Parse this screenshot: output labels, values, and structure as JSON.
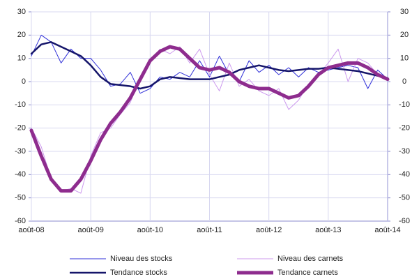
{
  "chart_data": {
    "type": "line",
    "categories": [
      "août-08",
      null,
      null,
      null,
      null,
      null,
      "août-09",
      null,
      null,
      null,
      null,
      null,
      "août-10",
      null,
      null,
      null,
      null,
      null,
      "août-11",
      null,
      null,
      null,
      null,
      null,
      "août-12",
      null,
      null,
      null,
      null,
      null,
      "août-13",
      null,
      null,
      null,
      null,
      null,
      "août-14"
    ],
    "series": [
      {
        "name": "Niveau des stocks",
        "color": "#2f2fd8",
        "width": 1,
        "values": [
          11,
          20,
          17,
          8,
          14,
          10,
          10,
          5,
          -2,
          -1,
          4,
          -5,
          -3,
          2,
          1,
          4,
          2,
          9,
          2,
          11,
          3,
          0,
          9,
          4,
          7,
          3,
          6,
          2,
          6,
          4,
          5,
          6,
          7,
          6,
          -3,
          5,
          1
        ]
      },
      {
        "name": "Niveau des carnets",
        "color": "#cc99ee",
        "width": 1,
        "values": [
          -20,
          -28,
          -42,
          -47,
          -46,
          -48,
          -32,
          -22,
          -20,
          -14,
          -9,
          2,
          8,
          14,
          12,
          15,
          8,
          14,
          3,
          -4,
          8,
          -2,
          1,
          -4,
          -6,
          -3,
          -12,
          -8,
          -1,
          3,
          8,
          14,
          0,
          10,
          8,
          3,
          1
        ]
      },
      {
        "name": "Tendance stocks",
        "color": "#15156a",
        "width": 2.5,
        "values": [
          12,
          16,
          17,
          15,
          13,
          11,
          7,
          2,
          -1,
          -1.5,
          -2,
          -3,
          -2,
          1,
          2,
          1.5,
          1,
          1,
          1,
          2,
          3,
          5,
          6,
          7,
          6,
          5,
          4.5,
          5,
          5.5,
          5.5,
          6,
          5.5,
          5,
          4.5,
          3.5,
          2.5,
          1.5
        ]
      },
      {
        "name": "Tendance carnets",
        "color": "#8e2c8e",
        "width": 5,
        "values": [
          -21,
          -32,
          -42,
          -47,
          -47,
          -42,
          -34,
          -25,
          -18,
          -13,
          -7,
          1,
          9,
          13,
          15,
          14,
          10,
          6,
          5,
          6,
          4,
          0,
          -2,
          -3,
          -3,
          -5,
          -7,
          -6,
          -2,
          3,
          6,
          7,
          8,
          8,
          6,
          3,
          1
        ]
      }
    ],
    "ylim": [
      -60,
      30
    ],
    "yticks": [
      -60,
      -50,
      -40,
      -30,
      -20,
      -10,
      0,
      10,
      20,
      30
    ],
    "y2lim": [
      -60,
      30
    ],
    "y2ticks": [
      -60,
      -50,
      -40,
      -30,
      -20,
      -10,
      0,
      10,
      20,
      30
    ],
    "grid": true
  }
}
